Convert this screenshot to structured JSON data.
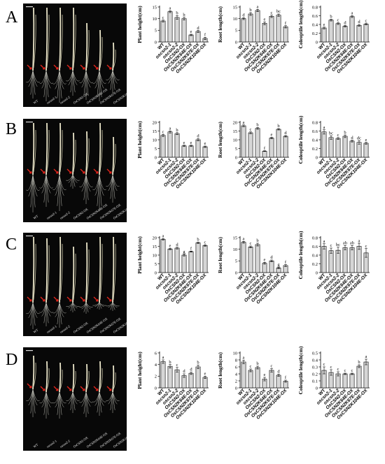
{
  "panels": [
    {
      "letter": "A",
      "photo_labels": [
        "WT",
        "oscsn2-1",
        "oscsn2-2",
        "OsCSN2-OX",
        "OsCSN2K64E-OX",
        "OsCSN2K67E-OX",
        "OsCSN2K104E-OX"
      ]
    },
    {
      "letter": "B",
      "photo_labels": [
        "WT",
        "oscsn2-1",
        "oscsn2-2",
        "OsCSN2-OX",
        "OsCSN2K64E-OX",
        "OsCSN2K67E-OX",
        "OsCSN2K104E-OX"
      ]
    },
    {
      "letter": "C",
      "photo_labels": [
        "WT",
        "oscsn2-1",
        "oscsn2-2",
        "OsCSN2-OX",
        "OsCSN2K64E-OX",
        "OsCSN2K67E-OX",
        "OsCSN2K104E-OX"
      ]
    },
    {
      "letter": "D",
      "photo_labels": [
        "WT",
        "oscsn2-1",
        "oscsn2-2",
        "OsCSN2-OX",
        "OsCSN2K64E-OX",
        "OsCSN2K67E-OX",
        "OsCSN2K104E-OX"
      ]
    }
  ],
  "chart_data": [
    {
      "type": "bar",
      "panel": "A",
      "ylabel": "Plant height(cm)",
      "categories": [
        "WT",
        "oscsn2-1",
        "oscsn2-2",
        "OsCSN2-OX",
        "OsCSN2K64E-OX",
        "OsCSN2K67E-OX",
        "OsCSN2K104E-OX"
      ],
      "values": [
        9,
        13,
        10.5,
        10,
        3,
        4.5,
        1.5
      ],
      "errors": [
        0.4,
        0.4,
        0.8,
        0.6,
        0.3,
        0.4,
        0.5
      ],
      "letters": [
        "c",
        "a",
        "b",
        "b",
        "e",
        "d",
        "f"
      ],
      "ylim": [
        0,
        15
      ],
      "yticks": [
        0,
        5,
        10,
        15
      ]
    },
    {
      "type": "bar",
      "panel": "A",
      "ylabel": "Root length(cm)",
      "categories": [
        "WT",
        "oscsn2-1",
        "oscsn2-2",
        "OsCSN2-OX",
        "OsCSN2K64E-OX",
        "OsCSN2K67E-OX",
        "OsCSN2K104E-OX"
      ],
      "values": [
        10,
        12,
        13.5,
        8,
        11,
        11.5,
        6.5
      ],
      "errors": [
        0.4,
        0.6,
        0.5,
        0.6,
        0.5,
        0.5,
        0.5
      ],
      "letters": [
        "d",
        "b",
        "a",
        "e",
        "c",
        "bc",
        "f"
      ],
      "ylim": [
        0,
        15
      ],
      "yticks": [
        0,
        5,
        10,
        15
      ]
    },
    {
      "type": "bar",
      "panel": "A",
      "ylabel": "Coleoptile length(cm)",
      "categories": [
        "WT",
        "oscsn2-1",
        "oscsn2-2",
        "OsCSN2-OX",
        "OsCSN2K64E-OX",
        "OsCSN2K67E-OX",
        "OsCSN2K104E-OX"
      ],
      "values": [
        0.32,
        0.5,
        0.42,
        0.36,
        0.58,
        0.38,
        0.41
      ],
      "errors": [
        0.02,
        0.02,
        0.02,
        0.02,
        0.02,
        0.02,
        0.02
      ],
      "letters": [
        "e",
        "b",
        "c",
        "d",
        "a",
        "d",
        "c"
      ],
      "ylim": [
        0,
        0.8
      ],
      "yticks": [
        0,
        0.2,
        0.4,
        0.6,
        0.8
      ]
    },
    {
      "type": "bar",
      "panel": "B",
      "ylabel": "Plant height(cm)",
      "categories": [
        "WT",
        "oscsn2-1",
        "oscsn2-2",
        "OsCSN2-OX",
        "OsCSN2K64E-OX",
        "OsCSN2K67E-OX",
        "OsCSN2K104E-OX"
      ],
      "values": [
        12.5,
        14.5,
        13.5,
        6.5,
        6.5,
        10,
        6
      ],
      "errors": [
        0.6,
        0.6,
        0.6,
        0.4,
        0.4,
        0.6,
        0.4
      ],
      "letters": [
        "c",
        "a",
        "b",
        "e",
        "e",
        "d",
        "e"
      ],
      "ylim": [
        0,
        20
      ],
      "yticks": [
        0,
        5,
        10,
        15,
        20
      ]
    },
    {
      "type": "bar",
      "panel": "B",
      "ylabel": "Root length(cm)",
      "categories": [
        "WT",
        "oscsn2-1",
        "oscsn2-2",
        "OsCSN2-OX",
        "OsCSN2K64E-OX",
        "OsCSN2K67E-OX",
        "OsCSN2K104E-OX"
      ],
      "values": [
        18,
        14,
        16.5,
        3.5,
        11,
        16,
        12
      ],
      "errors": [
        0.5,
        0.5,
        0.5,
        0.2,
        0.4,
        0.4,
        0.4
      ],
      "letters": [
        "a",
        "c",
        "b",
        "f",
        "e",
        "b",
        "d"
      ],
      "ylim": [
        0,
        20
      ],
      "yticks": [
        0,
        5,
        10,
        15,
        20
      ]
    },
    {
      "type": "bar",
      "panel": "B",
      "ylabel": "Coleoptile length(cm)",
      "categories": [
        "WT",
        "oscsn2-1",
        "oscsn2-2",
        "OsCSN2-OX",
        "OsCSN2K64E-OX",
        "OsCSN2K67E-OX",
        "OsCSN2K104E-OX"
      ],
      "values": [
        0.58,
        0.45,
        0.43,
        0.48,
        0.37,
        0.34,
        0.32
      ],
      "errors": [
        0.05,
        0.04,
        0.02,
        0.03,
        0.02,
        0.04,
        0.02
      ],
      "letters": [
        "a",
        "bc",
        "c",
        "b",
        "d",
        "dc",
        "e"
      ],
      "ylim": [
        0,
        0.8
      ],
      "yticks": [
        0,
        0.2,
        0.4,
        0.6,
        0.8
      ]
    },
    {
      "type": "bar",
      "panel": "C",
      "ylabel": "Plant height(cm)",
      "categories": [
        "WT",
        "oscsn2-1",
        "oscsn2-2",
        "OsCSN2-OX",
        "OsCSN2K64E-OX",
        "OsCSN2K67E-OX",
        "OsCSN2K104E-OX"
      ],
      "values": [
        19,
        13.5,
        14,
        10,
        12,
        17,
        15.5
      ],
      "errors": [
        0.4,
        0.4,
        0.5,
        0.5,
        0.3,
        0.4,
        0.4
      ],
      "letters": [
        "a",
        "e",
        "d",
        "g",
        "f",
        "b",
        "c"
      ],
      "ylim": [
        0,
        20
      ],
      "yticks": [
        0,
        5,
        10,
        15,
        20
      ]
    },
    {
      "type": "bar",
      "panel": "C",
      "ylabel": "Root length(cm)",
      "categories": [
        "WT",
        "oscsn2-1",
        "oscsn2-2",
        "OsCSN2-OX",
        "OsCSN2K64E-OX",
        "OsCSN2K67E-OX",
        "OsCSN2K104E-OX"
      ],
      "values": [
        13,
        11,
        12,
        4,
        5,
        2,
        3
      ],
      "errors": [
        0.4,
        0.4,
        0.6,
        0.4,
        0.4,
        0.3,
        0.4
      ],
      "letters": [
        "a",
        "c",
        "b",
        "e",
        "d",
        "g",
        "f"
      ],
      "ylim": [
        0,
        15
      ],
      "yticks": [
        0,
        5,
        10,
        15
      ]
    },
    {
      "type": "bar",
      "panel": "C",
      "ylabel": "Coleoptile length(cm)",
      "categories": [
        "WT",
        "oscsn2-1",
        "oscsn2-2",
        "OsCSN2-OX",
        "OsCSN2K64E-OX",
        "OsCSN2K67E-OX",
        "OsCSN2K104E-OX"
      ],
      "values": [
        0.6,
        0.5,
        0.51,
        0.57,
        0.57,
        0.6,
        0.45
      ],
      "errors": [
        0.06,
        0.06,
        0.07,
        0.05,
        0.05,
        0.07,
        0.1
      ],
      "letters": [
        "a",
        "c",
        "bc",
        "ab",
        "ab",
        "a",
        "c"
      ],
      "ylim": [
        0,
        0.8
      ],
      "yticks": [
        0,
        0.2,
        0.4,
        0.6,
        0.8
      ]
    },
    {
      "type": "bar",
      "panel": "D",
      "ylabel": "Plant height(cm)",
      "categories": [
        "WT",
        "oscsn2-1",
        "oscsn2-2",
        "OsCSN2-OX",
        "OsCSN2K64E-OX",
        "OsCSN2K67E-OX",
        "OsCSN2K104E-OX"
      ],
      "values": [
        4.5,
        3.7,
        3.1,
        2.1,
        2.5,
        3.6,
        1.8
      ],
      "errors": [
        0.3,
        0.3,
        0.4,
        0.3,
        0.2,
        0.3,
        0.2
      ],
      "letters": [
        "a",
        "b",
        "c",
        "d",
        "d",
        "b",
        "e"
      ],
      "ylim": [
        0,
        6
      ],
      "yticks": [
        0,
        2,
        4,
        6
      ]
    },
    {
      "type": "bar",
      "panel": "D",
      "ylabel": "Root length(cm)",
      "categories": [
        "WT",
        "oscsn2-1",
        "oscsn2-2",
        "OsCSN2-OX",
        "OsCSN2K64E-OX",
        "OsCSN2K67E-OX",
        "OsCSN2K104E-OX"
      ],
      "values": [
        7.4,
        5,
        5.8,
        2.5,
        5,
        3.6,
        1.9
      ],
      "errors": [
        0.5,
        0.4,
        0.4,
        0.5,
        0.5,
        0.3,
        0.3
      ],
      "letters": [
        "a",
        "c",
        "b",
        "e",
        "c",
        "d",
        "f"
      ],
      "ylim": [
        0,
        10
      ],
      "yticks": [
        0,
        2,
        4,
        6,
        8,
        10
      ]
    },
    {
      "type": "bar",
      "panel": "D",
      "ylabel": "Coleoptile length(cm)",
      "categories": [
        "WT",
        "oscsn2-1",
        "oscsn2-2",
        "OsCSN2-OX",
        "OsCSN2K64E-OX",
        "OsCSN2K67E-OX",
        "OsCSN2K104E-OX"
      ],
      "values": [
        0.25,
        0.22,
        0.2,
        0.2,
        0.2,
        0.31,
        0.37
      ],
      "errors": [
        0.05,
        0.04,
        0.03,
        0.01,
        0.01,
        0.02,
        0.04
      ],
      "letters": [
        "c",
        "c",
        "c",
        "c",
        "c",
        "b",
        "a"
      ],
      "ylim": [
        0,
        0.5
      ],
      "yticks": [
        0,
        0.1,
        0.2,
        0.3,
        0.4,
        0.5
      ]
    }
  ]
}
